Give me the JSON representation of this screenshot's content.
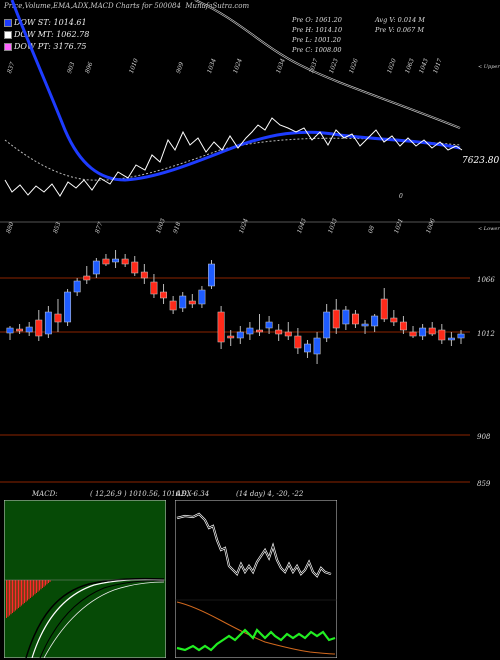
{
  "header": {
    "title": "Price,Volume,EMA,ADX,MACD Charts for 500084",
    "watermark": "MunafaSutra.com"
  },
  "legend": [
    {
      "label": "DOW ST: 1014.61",
      "color": "#1e3cff"
    },
    {
      "label": "DOW MT: 1062.78",
      "color": "#ffffff"
    },
    {
      "label": "DOW PT: 3176.75",
      "color": "#ff66ff"
    }
  ],
  "quote": {
    "pre_open": "Pre   O: 1061.20",
    "pre_high": "Pre   H: 1014.10",
    "pre_low": "Pre   L: 1001.20",
    "pre_close": "Pre   C: 1008.00",
    "avg_vol": "Avg V: 0.014  M",
    "pre_vol": "Pre   V: 0.067 M"
  },
  "panel_labels": {
    "upper": "< Upper",
    "lower": "< Lower",
    "last_price": "7623.80",
    "stray": "0"
  },
  "top_tick_labels": [
    "837",
    "903",
    "896",
    "1010",
    "909",
    "1034",
    "1024",
    "1034",
    "1037",
    "1023",
    "1026",
    "1020",
    "1063",
    "1043",
    "1017"
  ],
  "mid_tick_labels": [
    "880",
    "853",
    "877",
    "1003",
    "918",
    "1024",
    "1043",
    "1033",
    "08",
    "1021",
    "1006"
  ],
  "candle_axis": [
    "1066",
    "1012",
    "908",
    "859"
  ],
  "macd": {
    "label": "MACD:",
    "params": "( 12,26,9 ) 1010.56,  1016.9, -6.34",
    "fast": 1010.56,
    "slow": 1016.9,
    "hist": -6.34
  },
  "adx": {
    "label": "ADX",
    "params": "(14  day) 4, -20, -22",
    "adx": 4,
    "plus_di": -20,
    "minus_di": -22
  },
  "chart_data": {
    "type": "candlestick",
    "title": "Price,Volume,EMA,ADX,MACD Charts for 500084",
    "y_ticks": [
      1066,
      1012,
      908,
      859
    ],
    "candles": [
      {
        "o": 1011,
        "h": 1018,
        "l": 1004,
        "c": 1016,
        "up": true
      },
      {
        "o": 1015,
        "h": 1020,
        "l": 1010,
        "c": 1013,
        "up": false
      },
      {
        "o": 1012,
        "h": 1022,
        "l": 1008,
        "c": 1017,
        "up": true
      },
      {
        "o": 1024,
        "h": 1034,
        "l": 1003,
        "c": 1008,
        "up": false
      },
      {
        "o": 1010,
        "h": 1038,
        "l": 1006,
        "c": 1032,
        "up": true
      },
      {
        "o": 1030,
        "h": 1045,
        "l": 1012,
        "c": 1022,
        "up": false
      },
      {
        "o": 1022,
        "h": 1055,
        "l": 1018,
        "c": 1052,
        "up": true
      },
      {
        "o": 1052,
        "h": 1066,
        "l": 1048,
        "c": 1063,
        "up": true
      },
      {
        "o": 1068,
        "h": 1078,
        "l": 1060,
        "c": 1064,
        "up": false
      },
      {
        "o": 1070,
        "h": 1086,
        "l": 1066,
        "c": 1083,
        "up": true
      },
      {
        "o": 1085,
        "h": 1090,
        "l": 1078,
        "c": 1080,
        "up": false
      },
      {
        "o": 1082,
        "h": 1094,
        "l": 1076,
        "c": 1085,
        "up": true
      },
      {
        "o": 1085,
        "h": 1090,
        "l": 1077,
        "c": 1080,
        "up": false
      },
      {
        "o": 1082,
        "h": 1088,
        "l": 1068,
        "c": 1071,
        "up": false
      },
      {
        "o": 1072,
        "h": 1080,
        "l": 1060,
        "c": 1066,
        "up": false
      },
      {
        "o": 1062,
        "h": 1070,
        "l": 1046,
        "c": 1050,
        "up": false
      },
      {
        "o": 1052,
        "h": 1060,
        "l": 1040,
        "c": 1046,
        "up": false
      },
      {
        "o": 1043,
        "h": 1048,
        "l": 1030,
        "c": 1034,
        "up": false
      },
      {
        "o": 1036,
        "h": 1052,
        "l": 1032,
        "c": 1048,
        "up": true
      },
      {
        "o": 1043,
        "h": 1050,
        "l": 1036,
        "c": 1040,
        "up": false
      },
      {
        "o": 1040,
        "h": 1058,
        "l": 1036,
        "c": 1054,
        "up": true
      },
      {
        "o": 1058,
        "h": 1084,
        "l": 1055,
        "c": 1080,
        "up": true
      },
      {
        "o": 1032,
        "h": 1038,
        "l": 995,
        "c": 1002,
        "up": false
      },
      {
        "o": 1008,
        "h": 1014,
        "l": 998,
        "c": 1006,
        "up": false
      },
      {
        "o": 1006,
        "h": 1018,
        "l": 1000,
        "c": 1012,
        "up": true
      },
      {
        "o": 1010,
        "h": 1022,
        "l": 1004,
        "c": 1016,
        "up": true
      },
      {
        "o": 1014,
        "h": 1030,
        "l": 1008,
        "c": 1012,
        "up": false
      },
      {
        "o": 1016,
        "h": 1028,
        "l": 1010,
        "c": 1022,
        "up": true
      },
      {
        "o": 1014,
        "h": 1020,
        "l": 1003,
        "c": 1010,
        "up": false
      },
      {
        "o": 1012,
        "h": 1022,
        "l": 1004,
        "c": 1008,
        "up": false
      },
      {
        "o": 1008,
        "h": 1016,
        "l": 990,
        "c": 996,
        "up": false
      },
      {
        "o": 992,
        "h": 1004,
        "l": 986,
        "c": 1000,
        "up": true
      },
      {
        "o": 990,
        "h": 1012,
        "l": 980,
        "c": 1006,
        "up": true
      },
      {
        "o": 1006,
        "h": 1040,
        "l": 1002,
        "c": 1032,
        "up": true
      },
      {
        "o": 1034,
        "h": 1045,
        "l": 1010,
        "c": 1016,
        "up": false
      },
      {
        "o": 1020,
        "h": 1038,
        "l": 1014,
        "c": 1034,
        "up": true
      },
      {
        "o": 1030,
        "h": 1034,
        "l": 1016,
        "c": 1020,
        "up": false
      },
      {
        "o": 1018,
        "h": 1024,
        "l": 1010,
        "c": 1020,
        "up": true
      },
      {
        "o": 1018,
        "h": 1030,
        "l": 1012,
        "c": 1028,
        "up": true
      },
      {
        "o": 1045,
        "h": 1056,
        "l": 1022,
        "c": 1025,
        "up": false
      },
      {
        "o": 1026,
        "h": 1034,
        "l": 1018,
        "c": 1022,
        "up": false
      },
      {
        "o": 1022,
        "h": 1028,
        "l": 1010,
        "c": 1014,
        "up": false
      },
      {
        "o": 1012,
        "h": 1018,
        "l": 1006,
        "c": 1008,
        "up": false
      },
      {
        "o": 1008,
        "h": 1020,
        "l": 1004,
        "c": 1016,
        "up": true
      },
      {
        "o": 1016,
        "h": 1022,
        "l": 1008,
        "c": 1010,
        "up": false
      },
      {
        "o": 1014,
        "h": 1020,
        "l": 1000,
        "c": 1004,
        "up": false
      },
      {
        "o": 1004,
        "h": 1012,
        "l": 998,
        "c": 1006,
        "up": true
      },
      {
        "o": 1006,
        "h": 1014,
        "l": 1000,
        "c": 1010,
        "up": true
      }
    ]
  }
}
